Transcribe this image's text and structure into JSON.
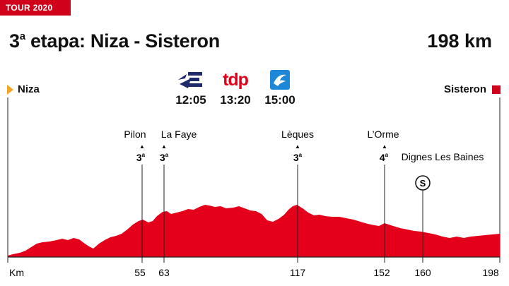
{
  "header": {
    "tag": "TOUR 2020",
    "title_prefix": "3",
    "title_sup": "a",
    "title_rest": " etapa: Niza - Sisteron",
    "distance": "198 km"
  },
  "route": {
    "start": "Niza",
    "finish": "Sisteron"
  },
  "broadcasts": [
    {
      "icon": "eurosport-icon",
      "time": "12:05"
    },
    {
      "icon": "tdp-icon",
      "label": "tdp",
      "time": "13:20"
    },
    {
      "icon": "bird-logo-icon",
      "time": "15:00"
    }
  ],
  "climbs": [
    {
      "name": "Pilon",
      "km": 55,
      "cat": "3",
      "sup": "a"
    },
    {
      "name": "La Faye",
      "km": 63,
      "cat": "3",
      "sup": "a"
    },
    {
      "name": "Lèques",
      "km": 117,
      "cat": "3",
      "sup": "a"
    },
    {
      "name": "L’Orme",
      "km": 152,
      "cat": "4",
      "sup": "a"
    }
  ],
  "sprint": {
    "name": "Dignes Les Baines",
    "km": 160,
    "symbol": "S"
  },
  "axis": {
    "unit_label": "Km",
    "ticks": [
      "55",
      "63",
      "117",
      "152",
      "160",
      "198"
    ]
  },
  "colors": {
    "accent": "#d0021b",
    "start_arrow": "#f5a623"
  }
}
